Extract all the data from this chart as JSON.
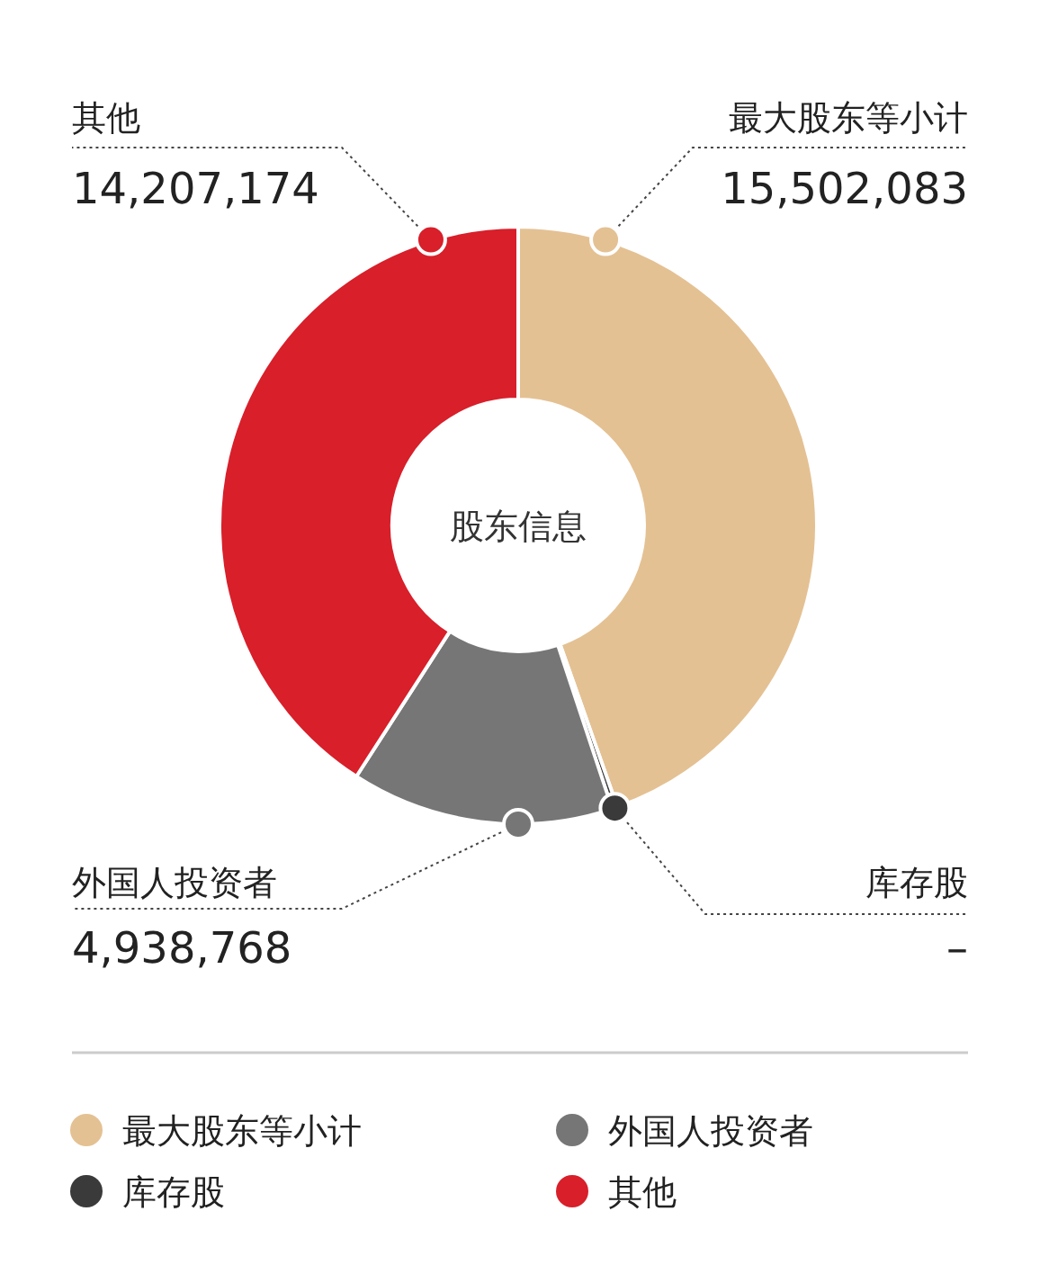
{
  "chart_data": {
    "type": "donut",
    "title": "股东信息",
    "categories": [
      "最大股东等小计",
      "库存股",
      "外国人投资者",
      "其他"
    ],
    "values": [
      15502083,
      100000,
      4938768,
      14207174
    ],
    "colors": [
      "#e4c193",
      "#3a3a3a",
      "#767676",
      "#d81f2a"
    ],
    "value_labels": [
      "15,502,083",
      "–",
      "4,938,768",
      "14,207,174"
    ],
    "legend": "bottom"
  }
}
